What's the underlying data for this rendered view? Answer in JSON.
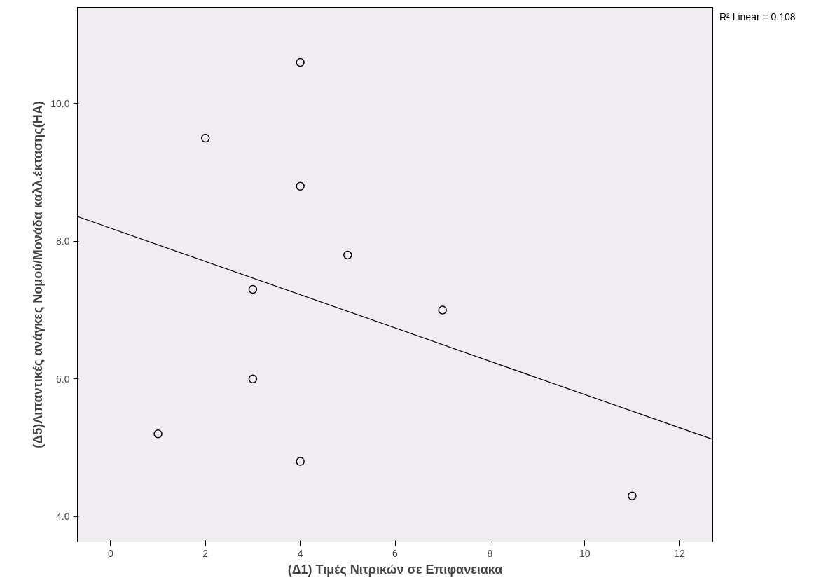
{
  "chart_data": {
    "type": "scatter",
    "xlabel": "(Δ1) Τιμές Νιτρικών σε Επιφανειακα",
    "ylabel": "(Δ5)Λιπαντικές ανάγκες Νομού/Μονάδα καλλ.έκτασης(HA)",
    "annotations": [
      "R² Linear = 0.108"
    ],
    "x": [
      1,
      2,
      3,
      3,
      4,
      4,
      4,
      5,
      7,
      11
    ],
    "series": [
      {
        "color": "#000000",
        "marker": "circle",
        "values": [
          5.2,
          9.5,
          7.3,
          6.0,
          10.6,
          8.8,
          4.8,
          7.8,
          7.0,
          4.3
        ]
      },
      {
        "type": "line",
        "color": "#000000",
        "marker": "none",
        "x": [
          -0.7,
          12.7
        ],
        "values": [
          8.36,
          5.12
        ]
      }
    ],
    "xlim": [
      -0.7,
      12.7
    ],
    "ylim": [
      3.63,
      11.4
    ],
    "xticks": [
      0,
      2,
      4,
      6,
      8,
      10,
      12
    ],
    "yticks": [
      {
        "value": 4,
        "label": "4.0"
      },
      {
        "value": 6,
        "label": "6.0"
      },
      {
        "value": 8,
        "label": "8.0"
      },
      {
        "value": 10,
        "label": "10.0"
      }
    ],
    "grid": false
  }
}
